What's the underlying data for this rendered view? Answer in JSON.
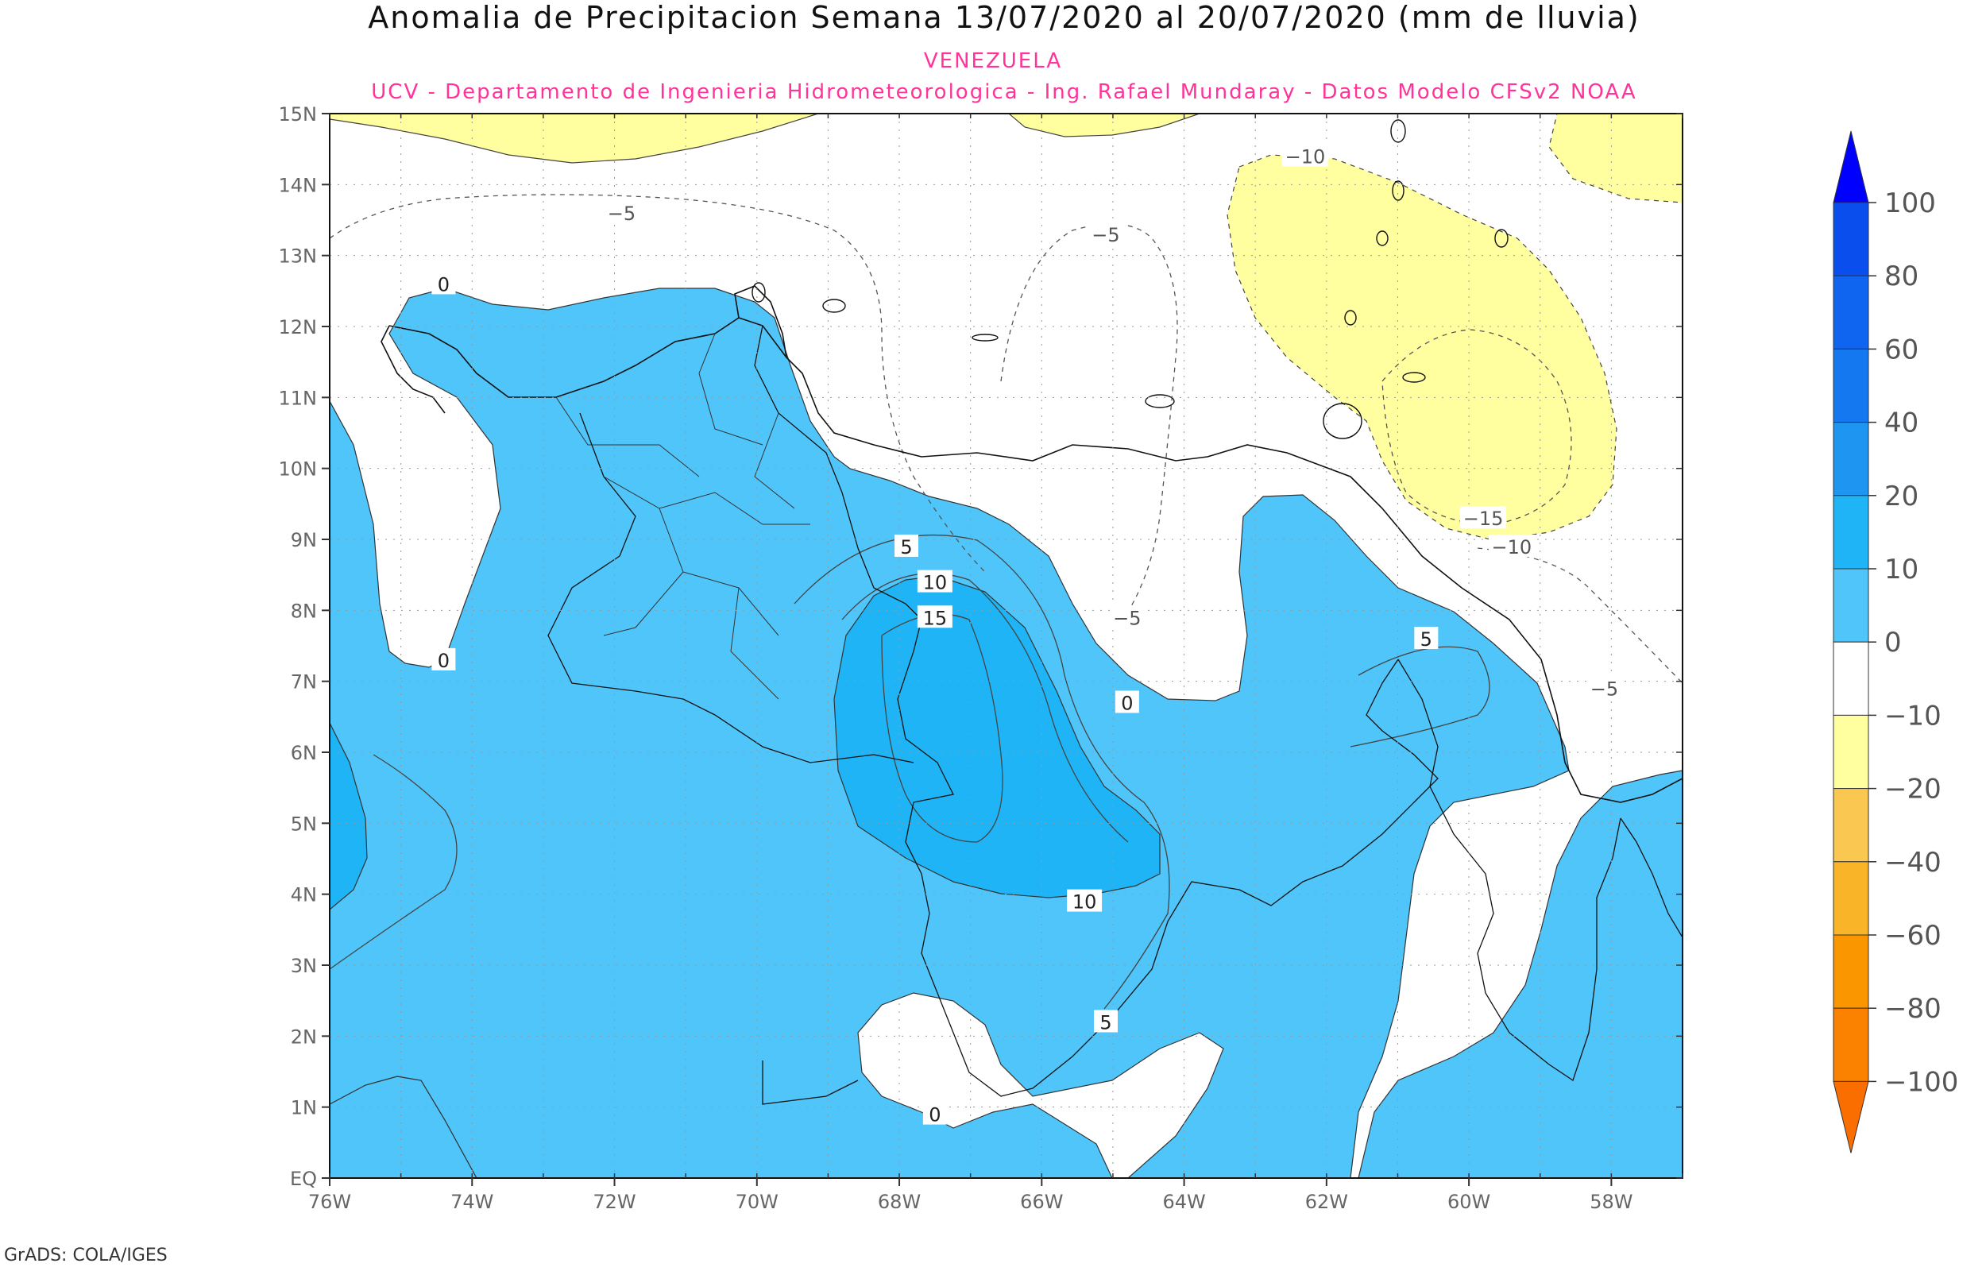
{
  "title": "Anomalia de Precipitacion Semana 13/07/2020 al 20/07/2020 (mm de lluvia)",
  "subtitle1": "VENEZUELA",
  "subtitle2": "UCV - Departamento de Ingenieria Hidrometeorologica - Ing. Rafael Mundaray - Datos Modelo CFSv2 NOAA",
  "credit": "GrADS: COLA/IGES",
  "map": {
    "lon_range": [
      -76,
      -57
    ],
    "lat_range": [
      0,
      15
    ],
    "lat_ticks": [
      "15N",
      "14N",
      "13N",
      "12N",
      "11N",
      "10N",
      "9N",
      "8N",
      "7N",
      "6N",
      "5N",
      "4N",
      "3N",
      "2N",
      "1N",
      "EQ"
    ],
    "lon_ticks": [
      "76W",
      "74W",
      "72W",
      "70W",
      "68W",
      "66W",
      "64W",
      "62W",
      "60W",
      "58W"
    ]
  },
  "colorbar": {
    "labels": [
      "100",
      "80",
      "60",
      "40",
      "20",
      "10",
      "0",
      "−10",
      "−20",
      "−40",
      "−60",
      "−80",
      "−100"
    ],
    "colors": [
      "#0000ff",
      "#0a4fee",
      "#0f64f0",
      "#1478f0",
      "#1e95f0",
      "#1eb4f5",
      "#50c5fa",
      "#ffffff",
      "#ffffa0",
      "#fac850",
      "#fab428",
      "#fa9600",
      "#fa8200",
      "#fa6e00"
    ]
  },
  "contour_labels": [
    {
      "text": "0",
      "lon": -74.4,
      "lat": 12.6
    },
    {
      "text": "0",
      "lon": -74.4,
      "lat": 7.3
    },
    {
      "text": "0",
      "lon": -64.8,
      "lat": 6.7
    },
    {
      "text": "0",
      "lon": -67.5,
      "lat": 0.9
    },
    {
      "text": "5",
      "lon": -67.9,
      "lat": 8.9
    },
    {
      "text": "5",
      "lon": -60.6,
      "lat": 7.6
    },
    {
      "text": "5",
      "lon": -65.1,
      "lat": 2.2
    },
    {
      "text": "10",
      "lon": -67.5,
      "lat": 8.4
    },
    {
      "text": "10",
      "lon": -65.4,
      "lat": 3.9
    },
    {
      "text": "15",
      "lon": -67.5,
      "lat": 7.9
    },
    {
      "text": "−5",
      "lon": -71.9,
      "lat": 13.6
    },
    {
      "text": "−5",
      "lon": -65.1,
      "lat": 13.3
    },
    {
      "text": "−5",
      "lon": -64.8,
      "lat": 7.9
    },
    {
      "text": "−5",
      "lon": -58.1,
      "lat": 6.9
    },
    {
      "text": "−10",
      "lon": -62.3,
      "lat": 14.4
    },
    {
      "text": "−10",
      "lon": -59.4,
      "lat": 8.9
    },
    {
      "text": "−15",
      "lon": -59.8,
      "lat": 9.3
    }
  ]
}
